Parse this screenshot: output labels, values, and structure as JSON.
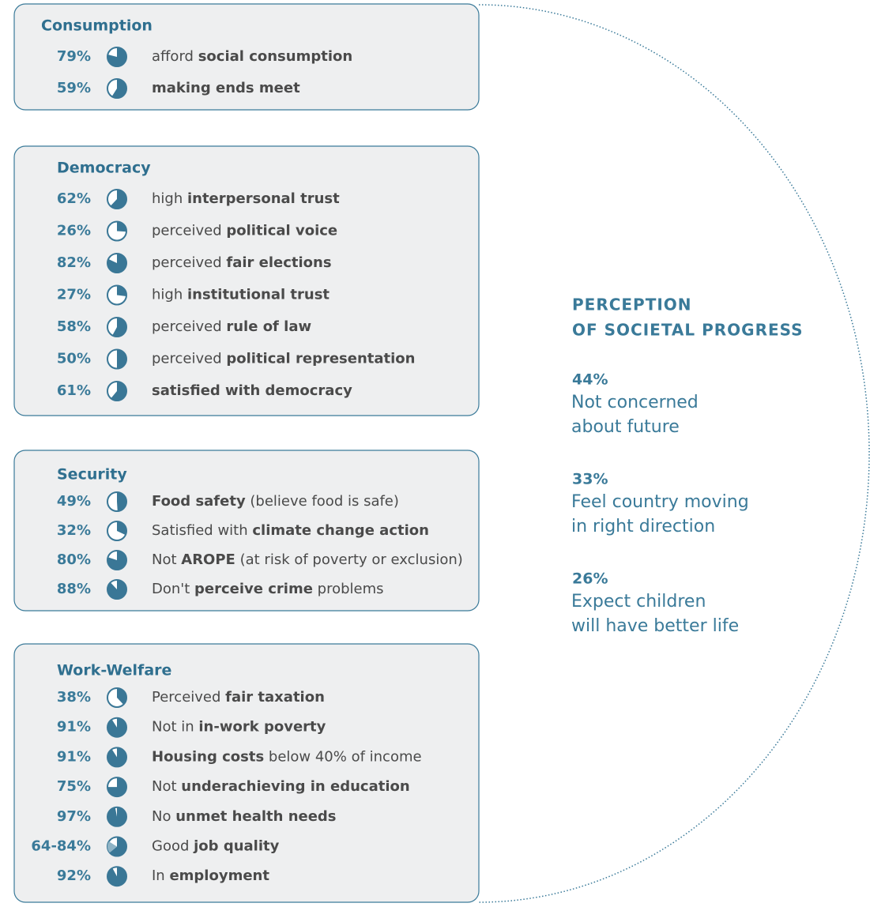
{
  "sections": [
    {
      "title": "Consumption",
      "items": [
        {
          "value": 79,
          "label": "79%",
          "text": [
            {
              "t": "afford "
            },
            {
              "t": "social consumption",
              "bold": true
            }
          ]
        },
        {
          "value": 59,
          "label": "59%",
          "text": [
            {
              "t": "making ends meet",
              "bold": true
            }
          ]
        }
      ]
    },
    {
      "title": "Democracy",
      "items": [
        {
          "value": 62,
          "label": "62%",
          "text": [
            {
              "t": "high "
            },
            {
              "t": "interpersonal trust",
              "bold": true
            }
          ]
        },
        {
          "value": 26,
          "label": "26%",
          "text": [
            {
              "t": "perceived "
            },
            {
              "t": "political voice",
              "bold": true
            }
          ]
        },
        {
          "value": 82,
          "label": "82%",
          "text": [
            {
              "t": "perceived "
            },
            {
              "t": "fair elections",
              "bold": true
            }
          ]
        },
        {
          "value": 27,
          "label": "27%",
          "text": [
            {
              "t": "high "
            },
            {
              "t": "institutional trust",
              "bold": true
            }
          ]
        },
        {
          "value": 58,
          "label": "58%",
          "text": [
            {
              "t": "perceived "
            },
            {
              "t": "rule of law",
              "bold": true
            }
          ]
        },
        {
          "value": 50,
          "label": "50%",
          "text": [
            {
              "t": "perceived "
            },
            {
              "t": "political representation",
              "bold": true
            }
          ]
        },
        {
          "value": 61,
          "label": "61%",
          "text": [
            {
              "t": "satisfied with democracy",
              "bold": true
            }
          ]
        }
      ]
    },
    {
      "title": "Security",
      "items": [
        {
          "value": 49,
          "label": "49%",
          "text": [
            {
              "t": "Food safety",
              "bold": true
            },
            {
              "t": " (believe food is safe)"
            }
          ]
        },
        {
          "value": 32,
          "label": "32%",
          "text": [
            {
              "t": "Satisfied with "
            },
            {
              "t": "climate change action",
              "bold": true
            }
          ]
        },
        {
          "value": 80,
          "label": "80%",
          "text": [
            {
              "t": "Not "
            },
            {
              "t": "AROPE",
              "bold": true
            },
            {
              "t": " (at risk of poverty or exclusion)"
            }
          ]
        },
        {
          "value": 88,
          "label": "88%",
          "text": [
            {
              "t": "Don't "
            },
            {
              "t": "perceive crime",
              "bold": true
            },
            {
              "t": " problems"
            }
          ]
        }
      ]
    },
    {
      "title": "Work-Welfare",
      "items": [
        {
          "value": 38,
          "label": "38%",
          "text": [
            {
              "t": "Perceived "
            },
            {
              "t": "fair taxation",
              "bold": true
            }
          ]
        },
        {
          "value": 91,
          "label": "91%",
          "text": [
            {
              "t": "Not in "
            },
            {
              "t": "in-work poverty",
              "bold": true
            }
          ]
        },
        {
          "value": 91,
          "label": "91%",
          "text": [
            {
              "t": "Housing costs",
              "bold": true
            },
            {
              "t": " below 40% of income"
            }
          ]
        },
        {
          "value": 75,
          "label": "75%",
          "text": [
            {
              "t": "Not "
            },
            {
              "t": "underachieving in education",
              "bold": true
            }
          ]
        },
        {
          "value": 97,
          "label": "97%",
          "text": [
            {
              "t": "No "
            },
            {
              "t": "unmet health needs",
              "bold": true
            }
          ]
        },
        {
          "value": 64,
          "value_high": 84,
          "label": "64-84%",
          "text": [
            {
              "t": "Good "
            },
            {
              "t": "job quality",
              "bold": true
            }
          ]
        },
        {
          "value": 92,
          "label": "92%",
          "text": [
            {
              "t": "In "
            },
            {
              "t": "employment",
              "bold": true
            }
          ]
        }
      ]
    }
  ],
  "perception": {
    "title": [
      "PERCEPTION",
      "OF SOCIETAL PROGRESS"
    ],
    "stats": [
      {
        "value": "44%",
        "lines": [
          "Not concerned",
          "about future"
        ]
      },
      {
        "value": "33%",
        "lines": [
          "Feel country moving",
          "in right direction"
        ]
      },
      {
        "value": "26%",
        "lines": [
          "Expect children",
          "will have better life"
        ]
      }
    ]
  }
}
